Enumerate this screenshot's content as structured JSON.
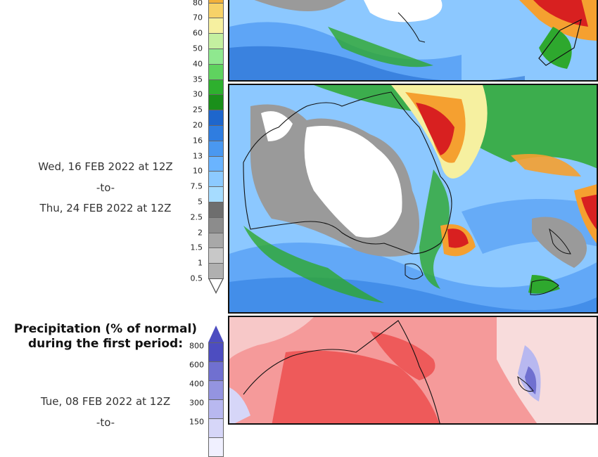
{
  "colors": {
    "precip_scale": [
      "#b0b0b0",
      "#c8c8c8",
      "#a8a8a8",
      "#8c8c8c",
      "#6e6e6e",
      "#a6dcff",
      "#8ccaff",
      "#6ab4ff",
      "#4a98f0",
      "#2f7de0",
      "#1e66cc",
      "#1a8f1a",
      "#2eb02e",
      "#5fd35f",
      "#8fe88f",
      "#c4f0a0",
      "#f6f0a0",
      "#f7d268",
      "#f2b03a"
    ],
    "anomaly_scale": [
      "#f0f0ff",
      "#d6d6f8",
      "#b8b8f0",
      "#9494e0",
      "#7070d0",
      "#4d4dc0"
    ],
    "map_ocean": "#8cc8ff",
    "map_land_dry": "#ffffff",
    "map_grey": "#9a9a9a",
    "map_green": "#2ea82e",
    "map_red": "#d82020",
    "map_orange": "#f5a030",
    "anomaly_bg": "#f59a9a",
    "anomaly_deep": "#ee5a5a"
  },
  "second_period": {
    "start": "Wed, 16 FEB 2022 at 12Z",
    "sep": "-to-",
    "end": "Thu, 24 FEB 2022 at 12Z"
  },
  "precip_scale": {
    "labels": [
      "0.5",
      "1",
      "1.5",
      "2",
      "2.5",
      "5",
      "7.5",
      "10",
      "13",
      "16",
      "20",
      "25",
      "30",
      "35",
      "40",
      "50",
      "60",
      "70",
      "80"
    ]
  },
  "anomaly_section": {
    "title_line1": "Precipitation (% of normal)",
    "title_line2": "during the first period:",
    "start": "Tue, 08 FEB 2022 at 12Z",
    "sep": "-to-",
    "labels": [
      "800",
      "600",
      "400",
      "300",
      "150"
    ]
  },
  "maps": {
    "top_map_name": "precipitation-total-map-first",
    "middle_map_name": "precipitation-total-map-second",
    "bottom_map_name": "precipitation-anomaly-map"
  }
}
